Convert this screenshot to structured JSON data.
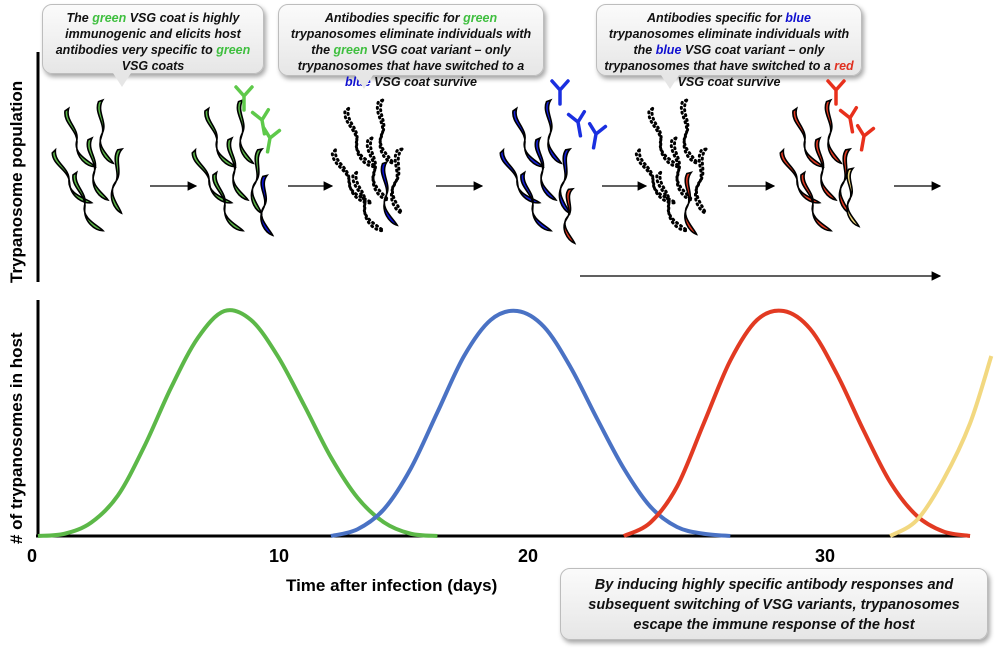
{
  "callouts": [
    {
      "parts": [
        {
          "t": "The "
        },
        {
          "t": "green",
          "c": "g"
        },
        {
          "t": " VSG coat is highly immunogenic and elicits host antibodies very specific to "
        },
        {
          "t": "green",
          "c": "g"
        },
        {
          "t": " VSG coats"
        }
      ]
    },
    {
      "parts": [
        {
          "t": "Antibodies specific for "
        },
        {
          "t": "green",
          "c": "g"
        },
        {
          "t": " trypanosomes eliminate individuals with the "
        },
        {
          "t": "green",
          "c": "g"
        },
        {
          "t": " VSG coat variant – only trypanosomes that have switched to a "
        },
        {
          "t": "blue",
          "c": "b"
        },
        {
          "t": " VSG coat survive"
        }
      ]
    },
    {
      "parts": [
        {
          "t": "Antibodies specific for "
        },
        {
          "t": "blue",
          "c": "b"
        },
        {
          "t": " trypanosomes eliminate individuals with the "
        },
        {
          "t": "blue",
          "c": "b"
        },
        {
          "t": " VSG coat variant – only trypanosomes that have switched to a "
        },
        {
          "t": "red",
          "c": "r"
        },
        {
          "t": " VSG coat survive"
        }
      ]
    }
  ],
  "conclusion": "By inducing highly specific antibody responses and subsequent switching of VSG variants, trypanosomes escape the immune response of the host",
  "top_ylabel": "Trypanosome population",
  "colors": {
    "green": "#5cb848",
    "blue": "#4a72c4",
    "red": "#e23a22",
    "yellow": "#f2d880",
    "antibody_green": "#5ec94a",
    "antibody_blue": "#1a2fe0",
    "antibody_red": "#e8301c"
  },
  "chart_data": {
    "type": "line",
    "title": "",
    "xlabel": "Time after infection (days)",
    "ylabel": "# of trypanosomes in host",
    "xlim": [
      0,
      35
    ],
    "ylim": [
      0,
      1
    ],
    "xticks": [
      "0",
      "10",
      "20",
      "30"
    ],
    "series": [
      {
        "color": "#5cb848",
        "x": [
          0,
          1,
          2,
          3,
          4,
          5,
          6,
          7,
          8,
          9,
          10,
          11,
          12,
          13,
          14,
          15
        ],
        "y": [
          0.0,
          0.01,
          0.06,
          0.18,
          0.4,
          0.66,
          0.88,
          1.0,
          0.96,
          0.8,
          0.58,
          0.35,
          0.17,
          0.06,
          0.01,
          0.0
        ]
      },
      {
        "color": "#4a72c4",
        "x": [
          11,
          12,
          13,
          14,
          15,
          16,
          17,
          18,
          19,
          20,
          21,
          22,
          23,
          24,
          25,
          26
        ],
        "y": [
          0.0,
          0.03,
          0.12,
          0.3,
          0.55,
          0.8,
          0.96,
          1.0,
          0.93,
          0.75,
          0.52,
          0.3,
          0.13,
          0.04,
          0.01,
          0.0
        ]
      },
      {
        "color": "#e23a22",
        "x": [
          22,
          23,
          24,
          25,
          26,
          27,
          28,
          29,
          30,
          31,
          32,
          33,
          34,
          35
        ],
        "y": [
          0.0,
          0.06,
          0.22,
          0.5,
          0.78,
          0.96,
          1.0,
          0.92,
          0.72,
          0.47,
          0.24,
          0.09,
          0.02,
          0.0
        ]
      },
      {
        "color": "#f2d880",
        "x": [
          32,
          33,
          34,
          35,
          35.8
        ],
        "y": [
          0.0,
          0.07,
          0.25,
          0.5,
          0.8
        ]
      }
    ]
  }
}
